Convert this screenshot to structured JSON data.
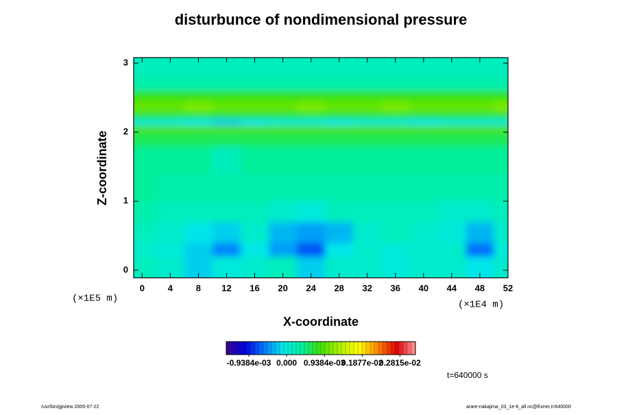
{
  "chart_data": {
    "type": "contour",
    "title": "disturbunce of nondimensional pressure",
    "x_label": "X-coordinate",
    "y_label": "Z-coordinate",
    "x_unit": "(×1E4 m)",
    "y_unit": "(×1E5 m)",
    "time_label": "t=640000 s",
    "footer_left": "/usr/bin/gpview 2005-07-22",
    "footer_right": "arare-nakajima_03_1e-6_all.nc@Exner,t=640000",
    "xlim": [
      -1.2,
      52
    ],
    "ylim": [
      -0.11,
      3.08
    ],
    "xticks": [
      0,
      4,
      8,
      12,
      16,
      20,
      24,
      28,
      32,
      36,
      40,
      44,
      48,
      52
    ],
    "yticks": [
      0,
      1,
      2,
      3
    ],
    "x_edges": [
      -1.2,
      2,
      6,
      10,
      14,
      18,
      22,
      26,
      30,
      34,
      38,
      42,
      46,
      50,
      52
    ],
    "y_edges": [
      -0.11,
      0.2,
      0.4,
      0.7,
      1.0,
      1.4,
      1.8,
      2.0,
      2.1,
      2.2,
      2.3,
      2.45,
      2.6,
      2.8,
      3.08
    ],
    "values": [
      [
        0.0002,
        0.0001,
        -0.0002,
        0.0,
        0.0001,
        0.0002,
        -0.0002,
        0.0001,
        0.0001,
        0.0,
        0.0001,
        0.0001,
        -0.0001,
        0.0001
      ],
      [
        0.0001,
        0.0,
        -0.0002,
        -0.0005,
        -0.0001,
        -0.0004,
        -0.0007,
        -0.0001,
        0.0001,
        0.0,
        0.0001,
        0.0001,
        -0.0006,
        0.0
      ],
      [
        0.0002,
        0.0001,
        -0.0001,
        -0.0002,
        0.0001,
        -0.0003,
        -0.0004,
        -0.0003,
        0.0001,
        0.0002,
        0.0001,
        0.0,
        -0.0003,
        0.0001
      ],
      [
        0.0003,
        0.0002,
        0.0002,
        0.0002,
        0.0002,
        0.0001,
        0.0,
        0.0002,
        0.0002,
        0.0002,
        0.0002,
        0.0001,
        0.0001,
        0.0002
      ],
      [
        0.0004,
        0.0003,
        0.0003,
        0.0003,
        0.0003,
        0.0003,
        0.0003,
        0.0003,
        0.0003,
        0.0003,
        0.0003,
        0.0003,
        0.0003,
        0.0003
      ],
      [
        0.0004,
        0.0004,
        0.0004,
        0.0002,
        0.0004,
        0.0004,
        0.0004,
        0.0004,
        0.0004,
        0.0004,
        0.0004,
        0.0004,
        0.0004,
        0.0004
      ],
      [
        0.0006,
        0.0006,
        0.0006,
        0.0006,
        0.0006,
        0.0006,
        0.0006,
        0.0006,
        0.0006,
        0.0006,
        0.0006,
        0.0006,
        0.0006,
        0.0006
      ],
      [
        0.0009,
        0.0009,
        0.0009,
        0.0009,
        0.0009,
        0.0009,
        0.0009,
        0.0009,
        0.0009,
        0.0009,
        0.0009,
        0.0009,
        0.0009,
        0.0009
      ],
      [
        0.0,
        0.0,
        -0.0001,
        -0.0002,
        -0.0001,
        0.0,
        0.0,
        -0.0001,
        0.0,
        0.0,
        -0.0001,
        0.0,
        0.0,
        0.0
      ],
      [
        0.0007,
        0.0007,
        0.0007,
        0.0007,
        0.0007,
        0.0007,
        0.0007,
        0.0007,
        0.0007,
        0.0007,
        0.0007,
        0.0007,
        0.0007,
        0.0007
      ],
      [
        0.001,
        0.001,
        0.0011,
        0.001,
        0.001,
        0.001,
        0.0011,
        0.001,
        0.001,
        0.0011,
        0.001,
        0.001,
        0.001,
        0.0011
      ],
      [
        0.0008,
        0.0008,
        0.0008,
        0.0008,
        0.0008,
        0.0008,
        0.0008,
        0.0008,
        0.0008,
        0.0008,
        0.0008,
        0.0008,
        0.0008,
        0.0008
      ],
      [
        0.0003,
        0.0003,
        0.0003,
        0.0003,
        0.0003,
        0.0003,
        0.0003,
        0.0003,
        0.0003,
        0.0003,
        0.0003,
        0.0003,
        0.0003,
        0.0003
      ],
      [
        0.0002,
        0.0002,
        0.0002,
        0.0002,
        0.0002,
        0.0002,
        0.0002,
        0.0002,
        0.0002,
        0.0002,
        0.0002,
        0.0002,
        0.0002,
        0.0002
      ]
    ],
    "clim": [
      -0.0015,
      0.0032
    ],
    "cticks": [
      {
        "value": -0.0009384,
        "label": "-0.9384e-03"
      },
      {
        "value": 0,
        "label": "0.000"
      },
      {
        "value": 0.0009384,
        "label": "0.9384e-03"
      },
      {
        "value": 0.001877,
        "label": "0.1877e-02"
      },
      {
        "value": 0.002815,
        "label": "0.2815e-02"
      }
    ],
    "colormap": [
      "#3a0090",
      "#0000e0",
      "#0078ff",
      "#00e8e8",
      "#00f0a0",
      "#40e000",
      "#b0f000",
      "#ffff00",
      "#ff8800",
      "#e00000",
      "#ff9a9a"
    ]
  }
}
